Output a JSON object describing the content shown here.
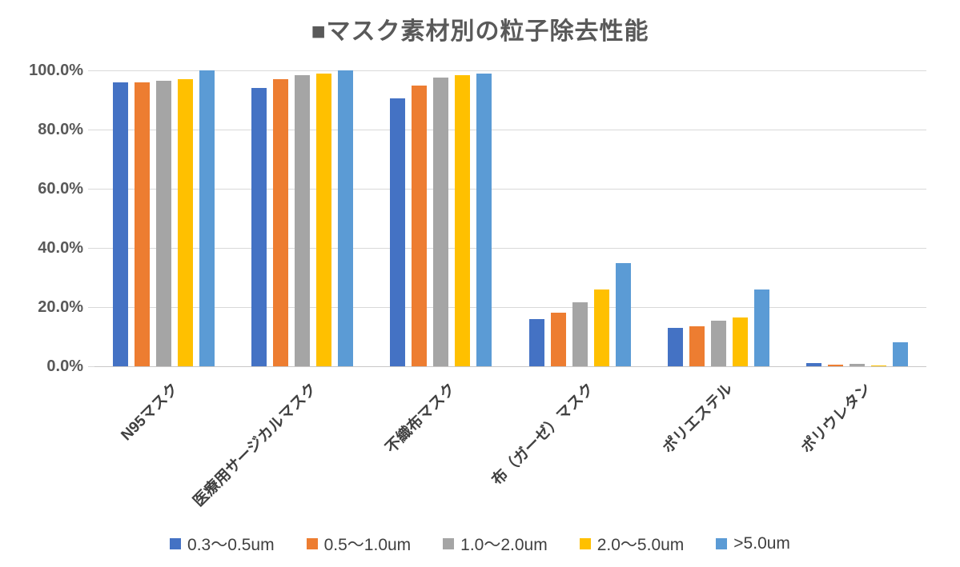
{
  "title": "■マスク素材別の粒子除去性能",
  "chart_data": {
    "type": "bar",
    "title": "■マスク素材別の粒子除去性能",
    "categories": [
      "N95マスク",
      "医療用サージカルマスク",
      "不織布マスク",
      "布（ガーゼ）マスク",
      "ポリエステル",
      "ポリウレタン"
    ],
    "series": [
      {
        "name": "0.3〜0.5um",
        "color": "#4472C4",
        "values": [
          96,
          94,
          90.5,
          16,
          13,
          1
        ]
      },
      {
        "name": "0.5〜1.0um",
        "color": "#ED7D31",
        "values": [
          96,
          97,
          95,
          18,
          13.5,
          0.6
        ]
      },
      {
        "name": "1.0〜2.0um",
        "color": "#A5A5A5",
        "values": [
          96.5,
          98.5,
          97.5,
          21.5,
          15.5,
          0.9
        ]
      },
      {
        "name": "2.0〜5.0um",
        "color": "#FFC000",
        "values": [
          97,
          99,
          98.5,
          26,
          16.5,
          0.3
        ]
      },
      {
        "name": ">5.0um",
        "color": "#5B9BD5",
        "values": [
          100,
          100,
          99,
          35,
          26,
          8
        ]
      }
    ],
    "xlabel": "",
    "ylabel": "",
    "ylim": [
      0,
      100
    ],
    "grid": true,
    "legend_position": "bottom",
    "y_ticks": [
      {
        "label": "100.0%",
        "value": 100
      },
      {
        "label": "80.0%",
        "value": 80
      },
      {
        "label": "60.0%",
        "value": 60
      },
      {
        "label": "40.0%",
        "value": 40
      },
      {
        "label": "20.0%",
        "value": 20
      },
      {
        "label": "0.0%",
        "value": 0
      }
    ]
  }
}
